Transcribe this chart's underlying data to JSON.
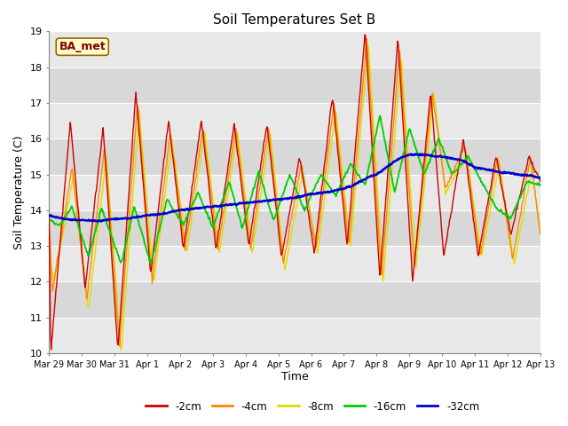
{
  "title": "Soil Temperatures Set B",
  "xlabel": "Time",
  "ylabel": "Soil Temperature (C)",
  "annotation": "BA_met",
  "ylim": [
    10.0,
    19.0
  ],
  "yticks": [
    10.0,
    11.0,
    12.0,
    13.0,
    14.0,
    15.0,
    16.0,
    17.0,
    18.0,
    19.0
  ],
  "xtick_labels": [
    "Mar 29",
    "Mar 30",
    "Mar 31",
    "Apr 1",
    "Apr 2",
    "Apr 3",
    "Apr 4",
    "Apr 5",
    "Apr 6",
    "Apr 7",
    "Apr 8",
    "Apr 9",
    "Apr 10",
    "Apr 11",
    "Apr 12",
    "Apr 13"
  ],
  "series_colors": {
    "-2cm": "#cc0000",
    "-4cm": "#ff8800",
    "-8cm": "#dddd00",
    "-16cm": "#00cc00",
    "-32cm": "#0000cc"
  },
  "plot_bg": "#cccccc",
  "grid_band_light": "#dddddd",
  "grid_band_dark": "#cccccc",
  "grid_line_color": "#bbbbbb",
  "annotation_bg": "#ffffcc",
  "annotation_border": "#996600",
  "annotation_text_color": "#880000",
  "n_days": 15,
  "pts_per_day": 48
}
